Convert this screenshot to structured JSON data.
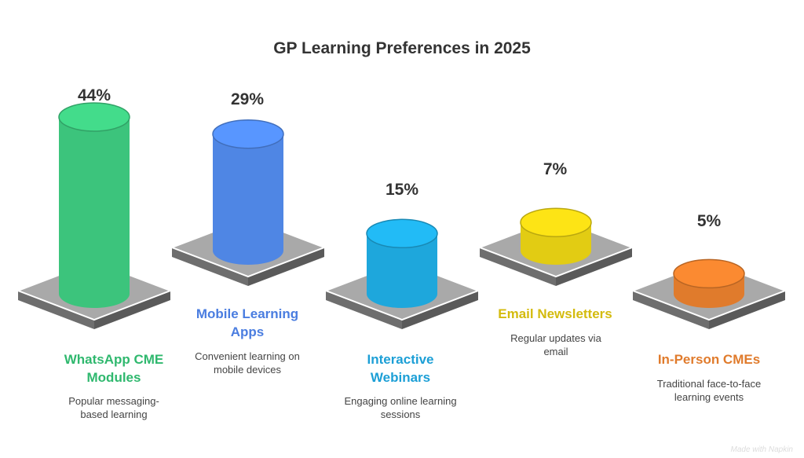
{
  "title": "GP Learning Preferences in 2025",
  "chart_data": {
    "type": "bar",
    "title": "GP Learning Preferences in 2025",
    "categories": [
      "WhatsApp CME Modules",
      "Mobile Learning Apps",
      "Interactive Webinars",
      "Email Newsletters",
      "In-Person CMEs"
    ],
    "values": [
      44,
      29,
      15,
      7,
      5
    ],
    "value_labels": [
      "44%",
      "29%",
      "15%",
      "7%",
      "5%"
    ],
    "descriptions": [
      "Popular messaging-based learning",
      "Convenient learning on mobile devices",
      "Engaging online learning sessions",
      "Regular updates via email",
      "Traditional face-to-face learning events"
    ],
    "colors": [
      "#3cc47c",
      "#4f86e4",
      "#1ea7dc",
      "#e2cc13",
      "#e07b2c"
    ],
    "label_colors": [
      "#2fb86e",
      "#4a7de0",
      "#1c9fd6",
      "#d4bb0e",
      "#e07b2c"
    ],
    "style": "3d-cylinder-on-platform"
  },
  "watermark": "Made with Napkin"
}
